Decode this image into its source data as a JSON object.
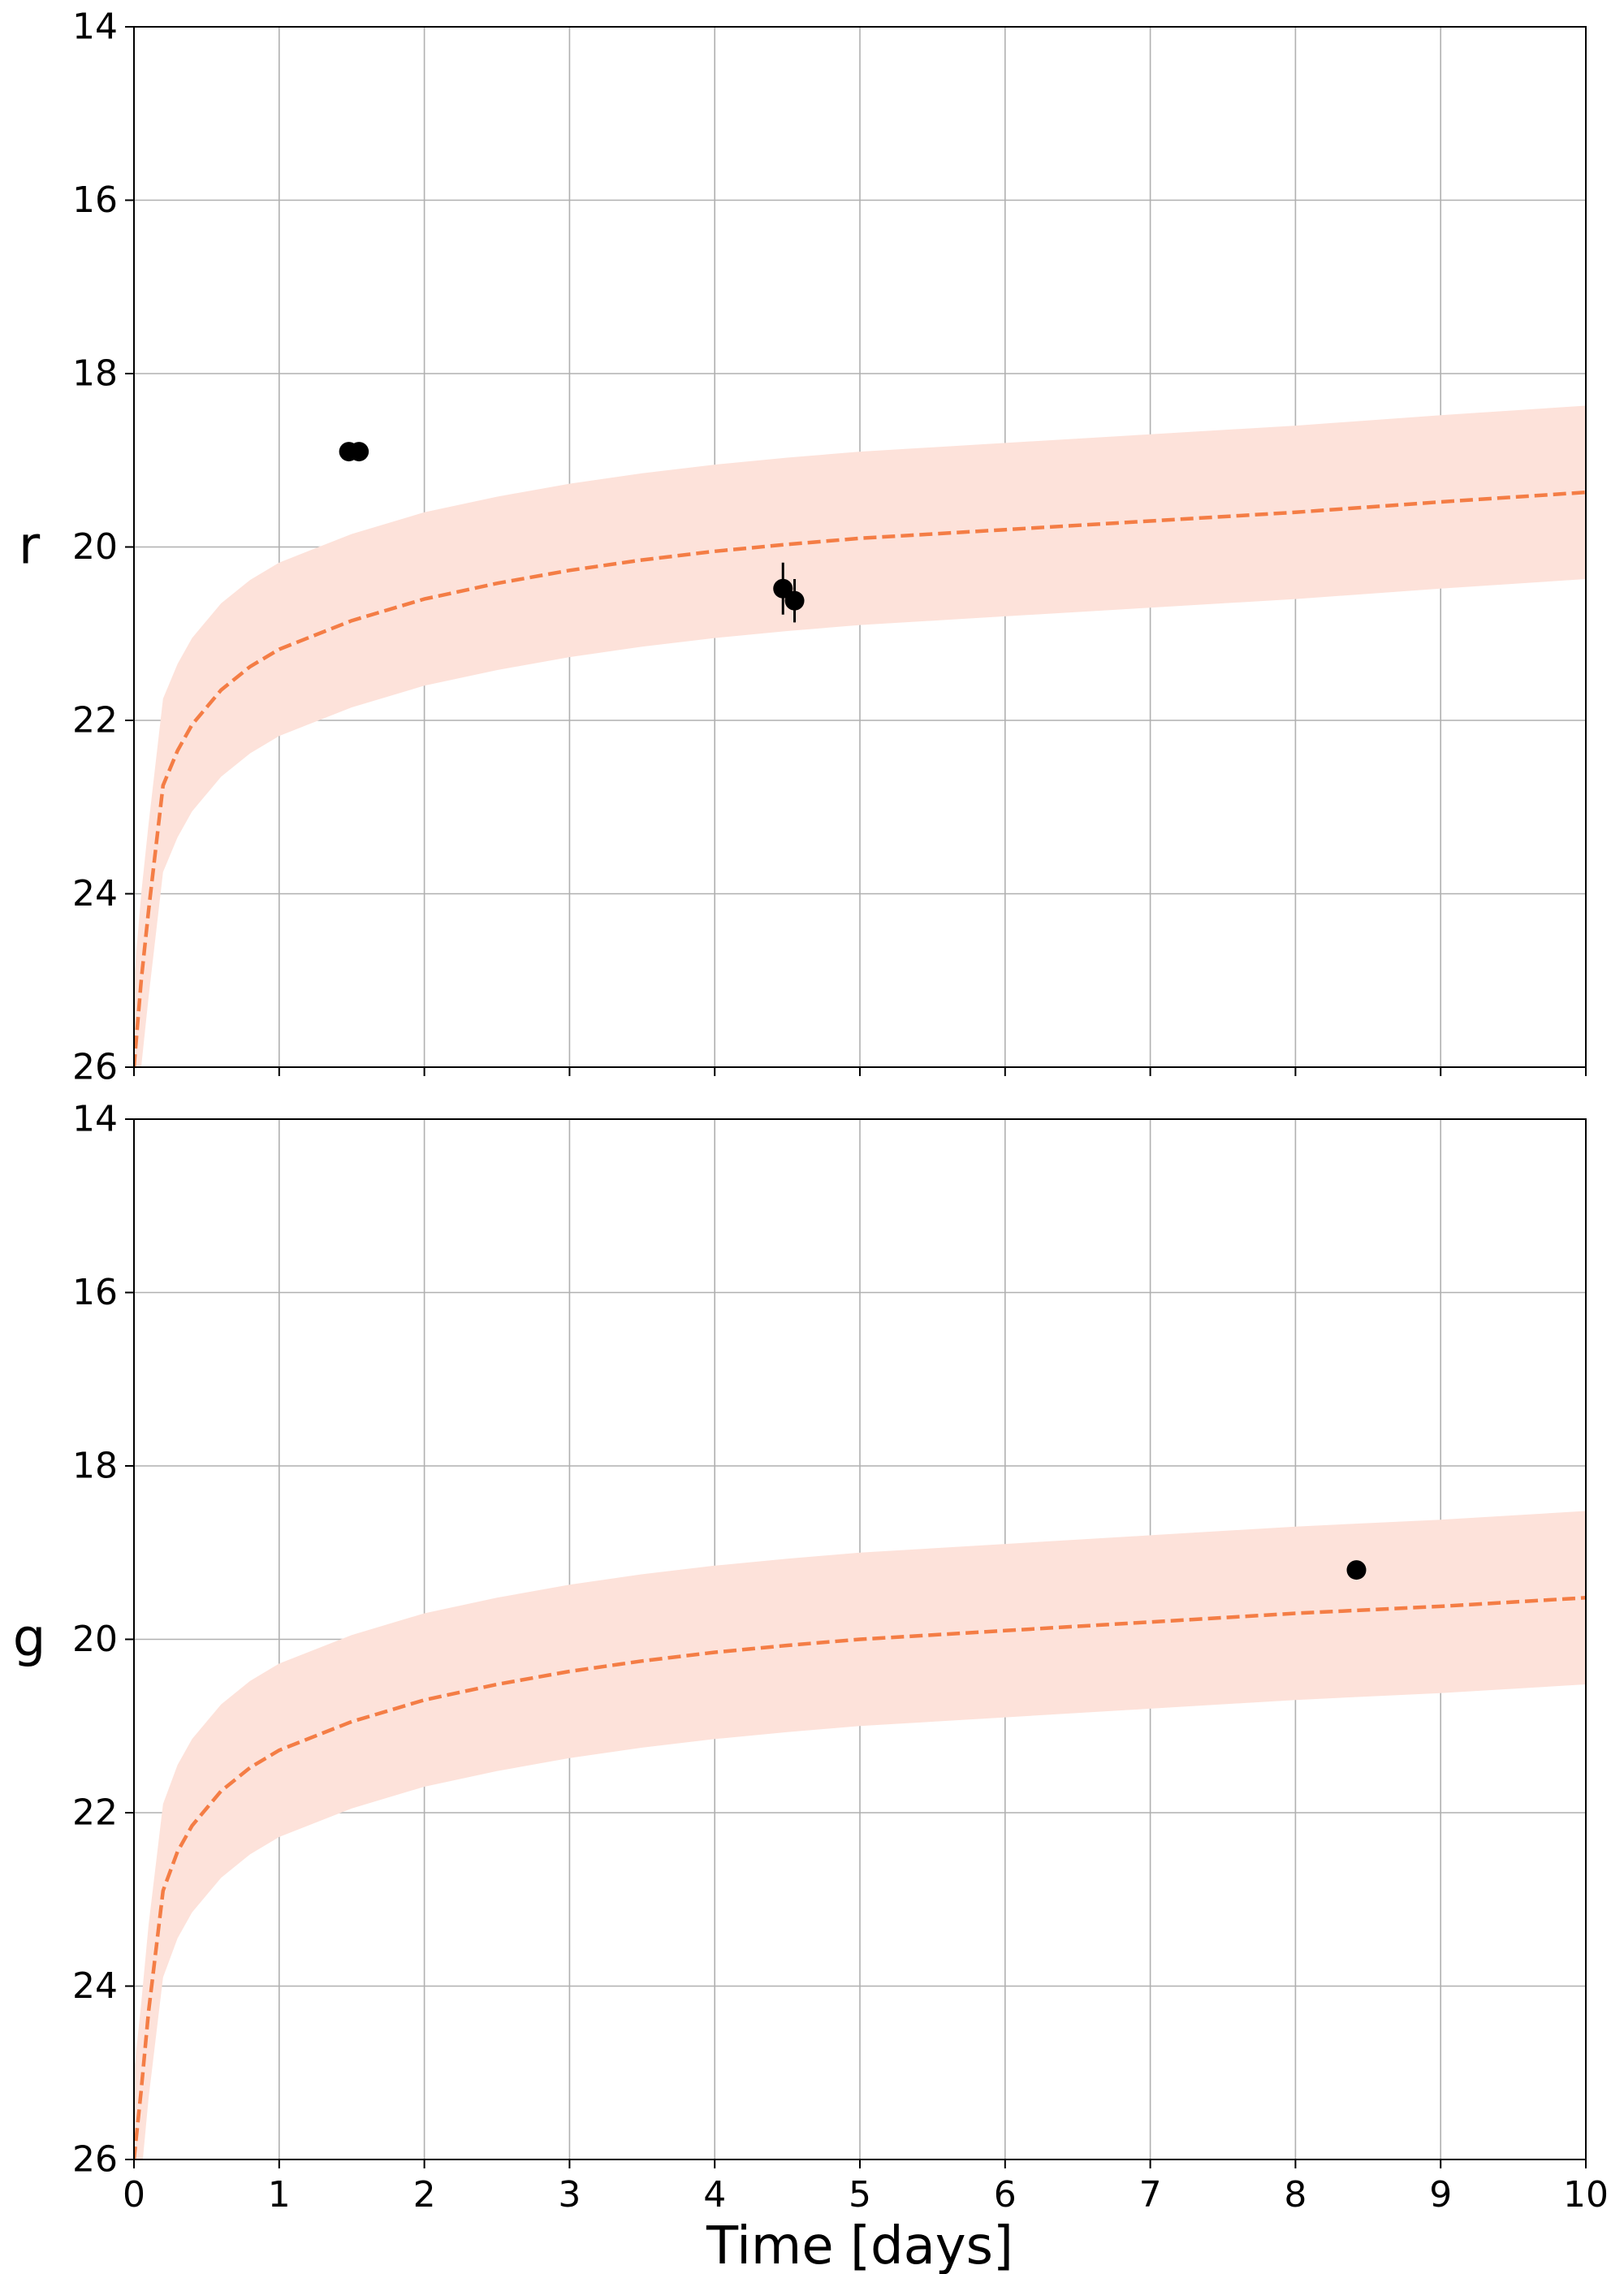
{
  "chart_data": [
    {
      "type": "line",
      "panel": "top",
      "ylabel": "r",
      "xlabel": "",
      "xlim": [
        0,
        10
      ],
      "ylim": [
        26,
        14
      ],
      "y_inverted": true,
      "grid": true,
      "xticks": [
        "0",
        "1",
        "2",
        "3",
        "4",
        "5",
        "6",
        "7",
        "8",
        "9",
        "10"
      ],
      "show_xtick_labels": false,
      "yticks": [
        "14",
        "16",
        "18",
        "20",
        "22",
        "24",
        "26"
      ],
      "band_color": "#fde2da",
      "line_color": "#f47d45",
      "point_color": "#000000",
      "model_x": [
        0,
        0.05,
        0.1,
        0.2,
        0.3,
        0.4,
        0.6,
        0.8,
        1,
        1.5,
        2,
        2.5,
        3,
        3.5,
        4,
        4.5,
        5,
        6,
        7,
        8,
        9,
        10
      ],
      "model_y": [
        26.0,
        25.0,
        24.2,
        22.75,
        22.35,
        22.05,
        21.65,
        21.38,
        21.18,
        20.85,
        20.6,
        20.42,
        20.27,
        20.15,
        20.05,
        19.97,
        19.9,
        19.8,
        19.7,
        19.6,
        19.48,
        19.37
      ],
      "band_halfwidth": 1.0,
      "points": [
        {
          "x": 1.48,
          "y": 18.9,
          "yerr": 0.0
        },
        {
          "x": 1.55,
          "y": 18.9,
          "yerr": 0.0
        },
        {
          "x": 4.47,
          "y": 20.48,
          "yerr": 0.3
        },
        {
          "x": 4.55,
          "y": 20.62,
          "yerr": 0.25
        }
      ]
    },
    {
      "type": "line",
      "panel": "bottom",
      "ylabel": "g",
      "xlabel": "Time [days]",
      "xlim": [
        0,
        10
      ],
      "ylim": [
        26,
        14
      ],
      "y_inverted": true,
      "grid": true,
      "xticks": [
        "0",
        "1",
        "2",
        "3",
        "4",
        "5",
        "6",
        "7",
        "8",
        "9",
        "10"
      ],
      "show_xtick_labels": true,
      "yticks": [
        "14",
        "16",
        "18",
        "20",
        "22",
        "24",
        "26"
      ],
      "band_color": "#fde2da",
      "line_color": "#f47d45",
      "point_color": "#000000",
      "model_x": [
        0,
        0.05,
        0.1,
        0.2,
        0.3,
        0.4,
        0.6,
        0.8,
        1,
        1.5,
        2,
        2.5,
        3,
        3.5,
        4,
        4.5,
        5,
        6,
        7,
        8,
        9,
        10
      ],
      "model_y": [
        26.0,
        25.2,
        24.3,
        22.9,
        22.45,
        22.15,
        21.75,
        21.48,
        21.28,
        20.95,
        20.7,
        20.52,
        20.37,
        20.25,
        20.15,
        20.07,
        20.0,
        19.9,
        19.8,
        19.7,
        19.62,
        19.52
      ],
      "band_halfwidth": 1.0,
      "points": [
        {
          "x": 8.42,
          "y": 19.2,
          "yerr": 0.0
        }
      ]
    }
  ]
}
